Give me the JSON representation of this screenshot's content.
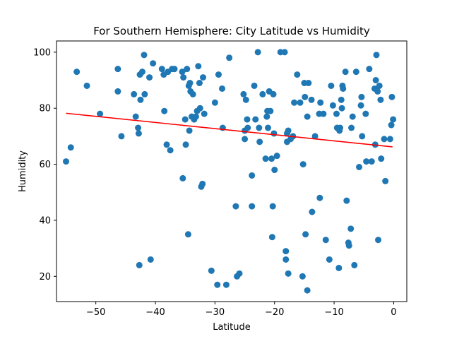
{
  "chart_data": {
    "type": "scatter",
    "title": "For Southern Hemisphere: City Latitude vs Humidity",
    "xlabel": "Latitude",
    "ylabel": "Humidity",
    "xlim": [
      -56.6,
      2.2
    ],
    "ylim": [
      11,
      104
    ],
    "xticks": [
      -50,
      -40,
      -30,
      -20,
      -10,
      0
    ],
    "yticks": [
      20,
      40,
      60,
      80,
      100
    ],
    "grid": false,
    "colors": {
      "points": "#1f77b4",
      "regression": "#ff0000"
    },
    "regression": {
      "x": [
        -55.0,
        -0.2
      ],
      "y": [
        78.2,
        66.2
      ]
    },
    "points": [
      [
        -55.0,
        61
      ],
      [
        -54.2,
        66
      ],
      [
        -53.2,
        93
      ],
      [
        -51.5,
        88
      ],
      [
        -49.3,
        78
      ],
      [
        -46.3,
        94
      ],
      [
        -46.3,
        86
      ],
      [
        -45.7,
        70
      ],
      [
        -43.6,
        85
      ],
      [
        -43.3,
        77
      ],
      [
        -42.9,
        73
      ],
      [
        -42.8,
        71
      ],
      [
        -42.7,
        24
      ],
      [
        -42.6,
        92
      ],
      [
        -42.5,
        83
      ],
      [
        -42.2,
        93
      ],
      [
        -41.9,
        99
      ],
      [
        -41.8,
        85
      ],
      [
        -41.0,
        91
      ],
      [
        -40.8,
        26
      ],
      [
        -40.4,
        96
      ],
      [
        -38.9,
        94
      ],
      [
        -38.6,
        92
      ],
      [
        -38.5,
        79
      ],
      [
        -38.1,
        67
      ],
      [
        -37.9,
        93
      ],
      [
        -37.5,
        65
      ],
      [
        -37.2,
        94
      ],
      [
        -36.8,
        94
      ],
      [
        -35.5,
        93
      ],
      [
        -35.4,
        55
      ],
      [
        -35.3,
        91
      ],
      [
        -35.0,
        76
      ],
      [
        -34.9,
        67
      ],
      [
        -34.7,
        94
      ],
      [
        -34.5,
        35
      ],
      [
        -34.4,
        88
      ],
      [
        -34.3,
        72
      ],
      [
        -34.2,
        89
      ],
      [
        -34.1,
        86
      ],
      [
        -33.9,
        77
      ],
      [
        -33.7,
        85
      ],
      [
        -33.5,
        76
      ],
      [
        -33.2,
        77
      ],
      [
        -33.0,
        79
      ],
      [
        -32.8,
        95
      ],
      [
        -32.6,
        89
      ],
      [
        -32.5,
        80
      ],
      [
        -32.3,
        52
      ],
      [
        -32.1,
        53
      ],
      [
        -32.0,
        91
      ],
      [
        -31.8,
        78
      ],
      [
        -30.6,
        22
      ],
      [
        -30.0,
        82
      ],
      [
        -29.6,
        17
      ],
      [
        -29.4,
        92
      ],
      [
        -28.8,
        87
      ],
      [
        -28.7,
        73
      ],
      [
        -28.1,
        17
      ],
      [
        -27.6,
        98
      ],
      [
        -26.5,
        45
      ],
      [
        -26.3,
        20
      ],
      [
        -25.9,
        21
      ],
      [
        -25.2,
        85
      ],
      [
        -25.0,
        72
      ],
      [
        -25.0,
        69
      ],
      [
        -24.8,
        83
      ],
      [
        -24.6,
        76
      ],
      [
        -24.5,
        73
      ],
      [
        -23.8,
        56
      ],
      [
        -23.8,
        45
      ],
      [
        -23.4,
        88
      ],
      [
        -23.2,
        76
      ],
      [
        -22.8,
        100
      ],
      [
        -22.6,
        73
      ],
      [
        -22.5,
        68
      ],
      [
        -22.0,
        85
      ],
      [
        -21.5,
        62
      ],
      [
        -21.3,
        77
      ],
      [
        -21.2,
        79
      ],
      [
        -21.1,
        73
      ],
      [
        -20.9,
        86
      ],
      [
        -20.7,
        79
      ],
      [
        -20.5,
        62
      ],
      [
        -20.4,
        34
      ],
      [
        -20.3,
        45
      ],
      [
        -20.2,
        85
      ],
      [
        -20.1,
        71
      ],
      [
        -20.0,
        58
      ],
      [
        -19.6,
        63
      ],
      [
        -19.0,
        100
      ],
      [
        -18.3,
        100
      ],
      [
        -18.1,
        26
      ],
      [
        -18.1,
        29
      ],
      [
        -17.9,
        71
      ],
      [
        -17.9,
        68
      ],
      [
        -17.7,
        72
      ],
      [
        -17.7,
        21
      ],
      [
        -17.3,
        69
      ],
      [
        -16.9,
        70
      ],
      [
        -16.7,
        82
      ],
      [
        -16.2,
        92
      ],
      [
        -15.7,
        82
      ],
      [
        -15.3,
        20
      ],
      [
        -15.2,
        60
      ],
      [
        -15.0,
        89
      ],
      [
        -14.9,
        84
      ],
      [
        -14.8,
        35
      ],
      [
        -14.5,
        77
      ],
      [
        -14.5,
        15
      ],
      [
        -14.3,
        89
      ],
      [
        -13.8,
        83
      ],
      [
        -13.7,
        43
      ],
      [
        -13.2,
        70
      ],
      [
        -12.5,
        78
      ],
      [
        -12.4,
        48
      ],
      [
        -12.3,
        82
      ],
      [
        -11.8,
        78
      ],
      [
        -11.4,
        33
      ],
      [
        -10.8,
        26
      ],
      [
        -10.5,
        88
      ],
      [
        -10.2,
        81
      ],
      [
        -9.6,
        78
      ],
      [
        -9.5,
        73
      ],
      [
        -9.2,
        23
      ],
      [
        -9.1,
        72
      ],
      [
        -9.0,
        73
      ],
      [
        -8.8,
        83
      ],
      [
        -8.7,
        80
      ],
      [
        -8.6,
        88
      ],
      [
        -8.5,
        87
      ],
      [
        -8.1,
        93
      ],
      [
        -7.9,
        47
      ],
      [
        -7.6,
        32
      ],
      [
        -7.5,
        31
      ],
      [
        -7.2,
        37
      ],
      [
        -7.1,
        73
      ],
      [
        -6.9,
        77
      ],
      [
        -6.6,
        24
      ],
      [
        -6.3,
        93
      ],
      [
        -5.8,
        59
      ],
      [
        -5.5,
        81
      ],
      [
        -5.4,
        84
      ],
      [
        -5.3,
        70
      ],
      [
        -4.7,
        78
      ],
      [
        -4.6,
        61
      ],
      [
        -4.1,
        94
      ],
      [
        -3.7,
        61
      ],
      [
        -3.2,
        87
      ],
      [
        -3.1,
        67
      ],
      [
        -3.0,
        90
      ],
      [
        -2.9,
        99
      ],
      [
        -2.7,
        86
      ],
      [
        -2.6,
        33
      ],
      [
        -2.4,
        88
      ],
      [
        -2.2,
        83
      ],
      [
        -2.1,
        62
      ],
      [
        -1.6,
        69
      ],
      [
        -1.4,
        54
      ],
      [
        -0.6,
        69
      ],
      [
        -0.4,
        74
      ],
      [
        -0.3,
        84
      ],
      [
        -0.1,
        76
      ]
    ]
  }
}
